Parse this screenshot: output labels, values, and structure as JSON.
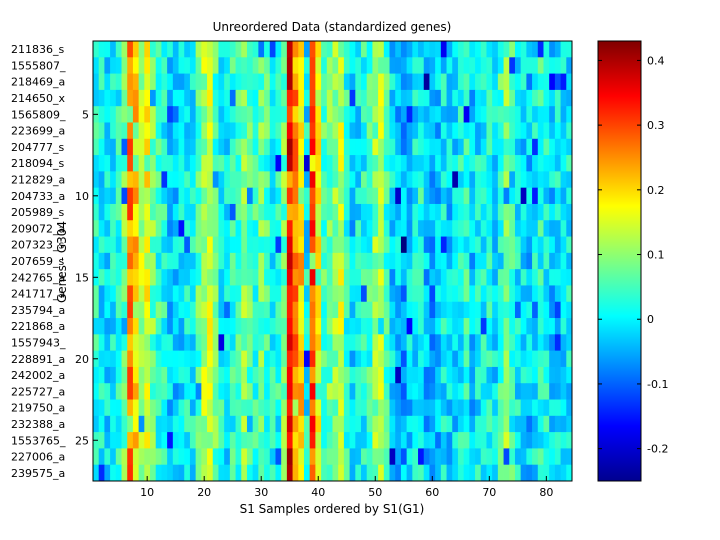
{
  "chart_data": [
    {
      "type": "heatmap",
      "title": "Unreordered Data (standardized genes)",
      "xlabel": "S1 Samples ordered by S1(G1)",
      "ylabel": "Genes - G304",
      "xlim": [
        0.5,
        84.5
      ],
      "ylim": [
        0.5,
        27.5
      ],
      "x_ticks": [
        10,
        20,
        30,
        40,
        50,
        60,
        70,
        80
      ],
      "y_ticks": [
        5,
        10,
        15,
        20,
        25
      ],
      "row_labels": [
        "211836_s",
        "1555807_",
        "218469_a",
        "214650_x",
        "1565809_",
        "223699_a",
        "204777_s",
        "218094_s",
        "212829_a",
        "204733_a",
        "205989_s",
        "209072_a",
        "207323_s",
        "207659_s",
        "242765_a",
        "241717_a",
        "235794_a",
        "221868_a",
        "1557943_",
        "228891_a",
        "242002_a",
        "225727_a",
        "219750_a",
        "232388_a",
        "1553765_",
        "227006_a",
        "239575_a"
      ],
      "n_rows": 27,
      "n_cols": 84,
      "colormap": "jet",
      "value_range": [
        -0.25,
        0.43
      ],
      "column_profile_mean": [
        0.02,
        0.0,
        -0.01,
        0.0,
        0.02,
        0.08,
        0.26,
        0.2,
        0.13,
        0.16,
        0.08,
        0.04,
        0.02,
        -0.02,
        -0.03,
        -0.01,
        0.01,
        0.0,
        0.06,
        0.12,
        0.14,
        0.06,
        0.02,
        0.0,
        0.03,
        0.05,
        0.09,
        0.06,
        0.04,
        0.07,
        0.05,
        0.01,
        0.02,
        0.08,
        0.35,
        0.25,
        0.2,
        0.0,
        0.3,
        0.18,
        0.06,
        0.08,
        0.1,
        0.13,
        0.02,
        -0.03,
        0.0,
        0.02,
        0.04,
        0.1,
        0.12,
        0.05,
        -0.02,
        -0.03,
        -0.05,
        -0.02,
        0.0,
        0.02,
        -0.04,
        -0.06,
        -0.03,
        0.0,
        -0.02,
        -0.01,
        0.01,
        0.03,
        -0.03,
        0.0,
        0.02,
        0.01,
        -0.01,
        0.05,
        0.09,
        0.04,
        0.0,
        -0.01,
        -0.03,
        0.0,
        0.03,
        0.01,
        -0.02,
        0.0,
        -0.01,
        0.0
      ]
    },
    {
      "type": "colorbar",
      "ticks": [
        -0.2,
        -0.1,
        0,
        0.1,
        0.2,
        0.3,
        0.4
      ],
      "tick_labels": [
        "-0.2",
        "-0.1",
        "0",
        "0.1",
        "0.2",
        "0.3",
        "0.4"
      ],
      "range": [
        -0.25,
        0.43
      ]
    }
  ]
}
